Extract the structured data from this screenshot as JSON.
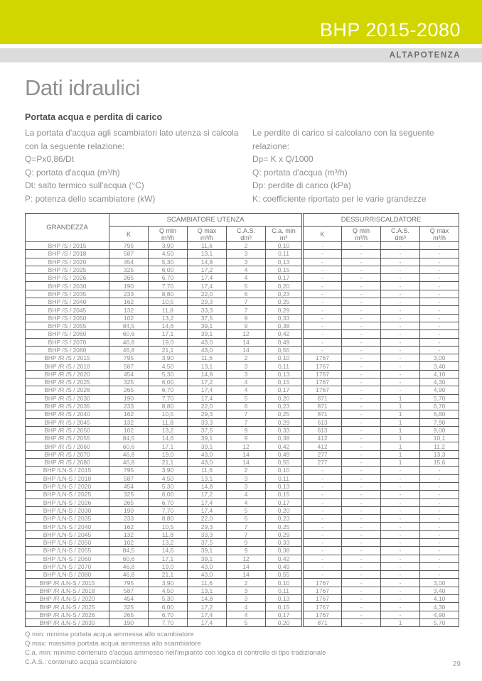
{
  "colors": {
    "accent": "#d1d600",
    "band_gray": "#dcdcdc"
  },
  "header": {
    "model": "BHP 2015-2080",
    "range": "ALTAPOTENZA"
  },
  "title": "Dati idraulici",
  "section": {
    "subtitle": "Portata acqua e perdita di carico",
    "left_lines": [
      "La portata d'acqua agli scambiatori lato utenza si calcola",
      "con la seguente relazione:",
      "Q=Px0,86/Dt",
      "Q: portata d'acqua (m³/h)",
      "Dt: salto termico sull'acqua (°C)",
      "P: potenza dello scambiatore (kW)"
    ],
    "right_lines": [
      "Le perdite di carico si calcolano con la seguente",
      "relazione:",
      "Dp= K x Q/1000",
      "Q: portata d'acqua (m³/h)",
      "Dp: perdite di carico (kPa)",
      "K: coefficiente riportato per le varie grandezze"
    ]
  },
  "table": {
    "col_grandezza": "GRANDEZZA",
    "group1": "SCAMBIATORE UTENZA",
    "group2": "DESSURRISCALDATORE",
    "sub_headers": [
      "K",
      "Q min\nm³/h",
      "Q max\nm³/h",
      "C.A.S.\ndm³",
      "C.a. min\nm³",
      "K",
      "Q min\nm³/h",
      "C.A.S.\ndm³",
      "Q max\nm³/h"
    ],
    "rows": [
      [
        "BHP /S / 2015",
        "795",
        "3,90",
        "11,6",
        "2",
        "0,10",
        "-",
        "-",
        "-",
        "-"
      ],
      [
        "BHP /S / 2018",
        "587",
        "4,50",
        "13,1",
        "3",
        "0,11",
        "-",
        "-",
        "-",
        "-"
      ],
      [
        "BHP /S / 2020",
        "454",
        "5,30",
        "14,8",
        "3",
        "0,13",
        "-",
        "-",
        "-",
        "-"
      ],
      [
        "BHP /S / 2025",
        "325",
        "6,00",
        "17,2",
        "4",
        "0,15",
        "-",
        "-",
        "-",
        "-"
      ],
      [
        "BHP /S / 2026",
        "265",
        "6,70",
        "17,4",
        "4",
        "0,17",
        "-",
        "-",
        "-",
        "-"
      ],
      [
        "BHP /S / 2030",
        "190",
        "7,70",
        "17,4",
        "5",
        "0,20",
        "-",
        "-",
        "-",
        "-"
      ],
      [
        "BHP /S / 2035",
        "233",
        "8,80",
        "22,0",
        "6",
        "0,23",
        "-",
        "-",
        "-",
        "-"
      ],
      [
        "BHP /S / 2040",
        "162",
        "10,5",
        "29,3",
        "7",
        "0,25",
        "-",
        "-",
        "-",
        "-"
      ],
      [
        "BHP /S / 2045",
        "132",
        "11,8",
        "33,3",
        "7",
        "0,29",
        "-",
        "-",
        "-",
        "-"
      ],
      [
        "BHP /S / 2050",
        "102",
        "13,2",
        "37,5",
        "9",
        "0,33",
        "-",
        "-",
        "-",
        "-"
      ],
      [
        "BHP /S / 2055",
        "84,5",
        "14,6",
        "39,1",
        "9",
        "0,38",
        "-",
        "-",
        "-",
        "-"
      ],
      [
        "BHP /S / 2060",
        "60,6",
        "17,1",
        "39,1",
        "12",
        "0,42",
        "-",
        "-",
        "-",
        "-"
      ],
      [
        "BHP /S / 2070",
        "46,8",
        "19,0",
        "43,0",
        "14",
        "0,49",
        "-",
        "-",
        "-",
        "-"
      ],
      [
        "BHP /S / 2080",
        "46,8",
        "21,1",
        "43,0",
        "14",
        "0,55",
        "-",
        "-",
        "-",
        "-"
      ],
      [
        "BHP /R /S / 2015",
        "795",
        "3,90",
        "11,6",
        "2",
        "0,10",
        "1767",
        "-",
        "-",
        "3,00"
      ],
      [
        "BHP /R /S / 2018",
        "587",
        "4,50",
        "13,1",
        "3",
        "0,11",
        "1767",
        "-",
        "-",
        "3,40"
      ],
      [
        "BHP /R /S / 2020",
        "454",
        "5,30",
        "14,8",
        "3",
        "0,13",
        "1767",
        "-",
        "-",
        "4,10"
      ],
      [
        "BHP /R /S / 2025",
        "325",
        "6,00",
        "17,2",
        "4",
        "0,15",
        "1767",
        "-",
        "-",
        "4,30"
      ],
      [
        "BHP /R /S / 2026",
        "265",
        "6,70",
        "17,4",
        "4",
        "0,17",
        "1767",
        "-",
        "-",
        "4,90"
      ],
      [
        "BHP /R /S / 2030",
        "190",
        "7,70",
        "17,4",
        "5",
        "0,20",
        "871",
        "-",
        "1",
        "5,70"
      ],
      [
        "BHP /R /S / 2035",
        "233",
        "8,80",
        "22,0",
        "6",
        "0,23",
        "871",
        "-",
        "1",
        "6,70"
      ],
      [
        "BHP /R /S / 2040",
        "162",
        "10,5",
        "29,3",
        "7",
        "0,25",
        "871",
        "-",
        "1",
        "6,80"
      ],
      [
        "BHP /R /S / 2045",
        "132",
        "11,8",
        "33,3",
        "7",
        "0,29",
        "613",
        "-",
        "1",
        "7,90"
      ],
      [
        "BHP /R /S / 2050",
        "102",
        "13,2",
        "37,5",
        "9",
        "0,33",
        "613",
        "-",
        "1",
        "9,00"
      ],
      [
        "BHP /R /S / 2055",
        "84,5",
        "14,6",
        "39,1",
        "9",
        "0,38",
        "412",
        "-",
        "1",
        "10,1"
      ],
      [
        "BHP /R /S / 2060",
        "60,6",
        "17,1",
        "39,1",
        "12",
        "0,42",
        "412",
        "-",
        "1",
        "11,2"
      ],
      [
        "BHP /R /S / 2070",
        "46,8",
        "19,0",
        "43,0",
        "14",
        "0,49",
        "277",
        "-",
        "1",
        "13,3"
      ],
      [
        "BHP /R /S / 2080",
        "46,8",
        "21,1",
        "43,0",
        "14",
        "0,55",
        "277",
        "-",
        "1",
        "15,6"
      ],
      [
        "BHP /LN-S / 2015",
        "795",
        "3,90",
        "11,6",
        "2",
        "0,10",
        "-",
        "-",
        "-",
        "-"
      ],
      [
        "BHP /LN-S / 2018",
        "587",
        "4,50",
        "13,1",
        "3",
        "0,11",
        "-",
        "-",
        "-",
        "-"
      ],
      [
        "BHP /LN-S / 2020",
        "454",
        "5,30",
        "14,8",
        "3",
        "0,13",
        "-",
        "-",
        "-",
        "-"
      ],
      [
        "BHP /LN-S / 2025",
        "325",
        "6,00",
        "17,2",
        "4",
        "0,15",
        "-",
        "-",
        "-",
        "-"
      ],
      [
        "BHP /LN-S / 2026",
        "265",
        "6,70",
        "17,4",
        "4",
        "0,17",
        "-",
        "-",
        "-",
        "-"
      ],
      [
        "BHP /LN-S / 2030",
        "190",
        "7,70",
        "17,4",
        "5",
        "0,20",
        "-",
        "-",
        "-",
        "-"
      ],
      [
        "BHP /LN-S / 2035",
        "233",
        "8,80",
        "22,0",
        "6",
        "0,23",
        "-",
        "-",
        "-",
        "-"
      ],
      [
        "BHP /LN-S / 2040",
        "162",
        "10,5",
        "29,3",
        "7",
        "0,25",
        "-",
        "-",
        "-",
        "-"
      ],
      [
        "BHP /LN-S / 2045",
        "132",
        "11,8",
        "33,3",
        "7",
        "0,29",
        "-",
        "-",
        "-",
        "-"
      ],
      [
        "BHP /LN-S / 2050",
        "102",
        "13,2",
        "37,5",
        "9",
        "0,33",
        "-",
        "-",
        "-",
        "-"
      ],
      [
        "BHP /LN-S / 2055",
        "84,5",
        "14,6",
        "39,1",
        "9",
        "0,38",
        "-",
        "-",
        "-",
        "-"
      ],
      [
        "BHP /LN-S / 2060",
        "60,6",
        "17,1",
        "39,1",
        "12",
        "0,42",
        "-",
        "-",
        "-",
        "-"
      ],
      [
        "BHP /LN-S / 2070",
        "46,8",
        "19,0",
        "43,0",
        "14",
        "0,49",
        "-",
        "-",
        "-",
        "-"
      ],
      [
        "BHP /LN-S / 2080",
        "46,8",
        "21,1",
        "43,0",
        "14",
        "0,55",
        "-",
        "-",
        "-",
        "-"
      ],
      [
        "BHP /R /LN-S / 2015",
        "795",
        "3,90",
        "11,6",
        "2",
        "0,10",
        "1767",
        "-",
        "-",
        "3,00"
      ],
      [
        "BHP /R /LN-S / 2018",
        "587",
        "4,50",
        "13,1",
        "3",
        "0,11",
        "1767",
        "-",
        "-",
        "3,40"
      ],
      [
        "BHP /R /LN-S / 2020",
        "454",
        "5,30",
        "14,8",
        "3",
        "0,13",
        "1767",
        "-",
        "-",
        "4,10"
      ],
      [
        "BHP /R /LN-S / 2025",
        "325",
        "6,00",
        "17,2",
        "4",
        "0,15",
        "1767",
        "-",
        "-",
        "4,30"
      ],
      [
        "BHP /R /LN-S / 2026",
        "265",
        "6,70",
        "17,4",
        "4",
        "0,17",
        "1767",
        "-",
        "-",
        "4,90"
      ],
      [
        "BHP /R /LN-S / 2030",
        "190",
        "7,70",
        "17,4",
        "5",
        "0,20",
        "871",
        "-",
        "1",
        "5,70"
      ]
    ]
  },
  "footnotes": [
    "Q min: minima portata acqua ammessa allo scambiatore",
    "Q max: massima portata acqua ammessa allo scambiatore",
    "C.a. min: minimo contenuto d'acqua ammesso nell'impianto con logica di controllo di tipo tradizionale",
    "C.A.S.: contenuto acqua scambiatore"
  ],
  "page_number": "29"
}
